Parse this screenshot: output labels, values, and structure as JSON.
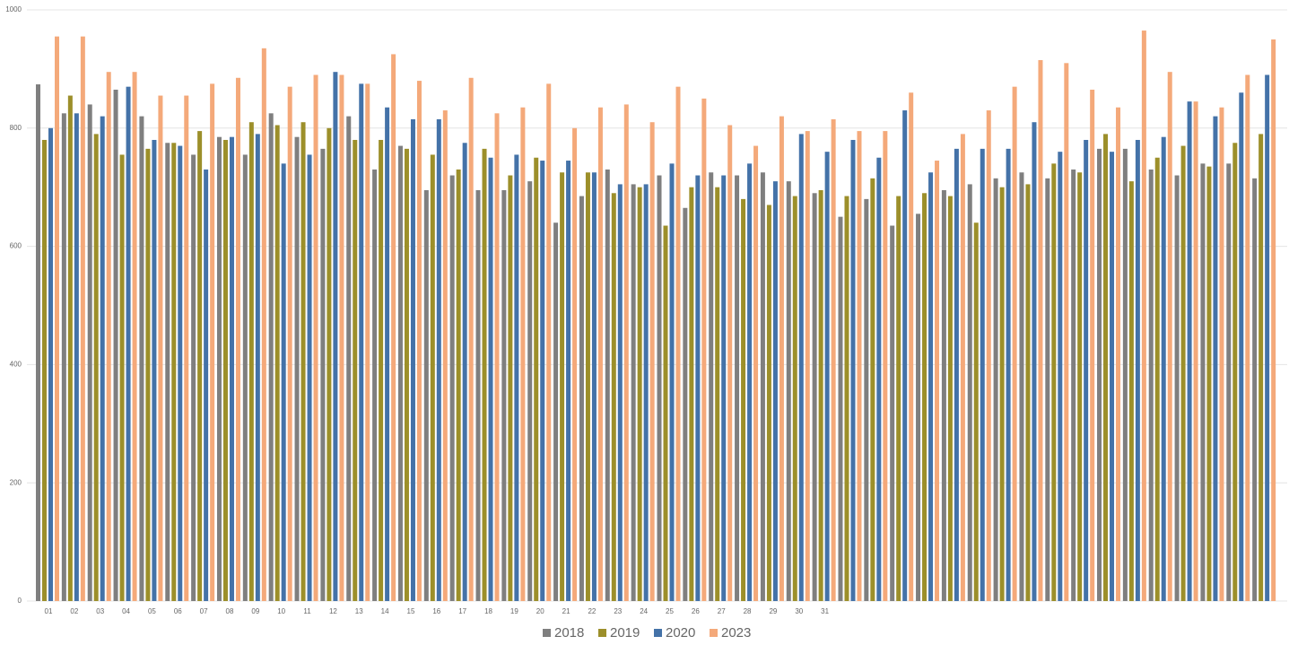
{
  "chart_data": {
    "type": "bar",
    "categories": [
      "01",
      "02",
      "03",
      "04",
      "05",
      "06",
      "07",
      "08",
      "09",
      "10",
      "11",
      "12",
      "13",
      "14",
      "15",
      "16",
      "17",
      "18",
      "19",
      "20",
      "21",
      "22",
      "23",
      "24",
      "25",
      "26",
      "27",
      "28",
      "29",
      "30",
      "31",
      null,
      null,
      null,
      null,
      null,
      null,
      null,
      null,
      null,
      null,
      null,
      null,
      null,
      null,
      null,
      null,
      null
    ],
    "series": [
      {
        "name": "2018",
        "color": "#7f7f7f",
        "values": [
          874,
          825,
          840,
          865,
          820,
          775,
          755,
          785,
          755,
          825,
          785,
          765,
          820,
          730,
          770,
          695,
          720,
          695,
          695,
          710,
          640,
          685,
          730,
          705,
          720,
          665,
          725,
          720,
          725,
          710,
          690,
          650,
          680,
          635,
          655,
          695,
          705,
          715,
          725,
          715,
          730,
          765,
          765,
          730,
          720,
          740,
          740,
          715
        ]
      },
      {
        "name": "2019",
        "color": "#9c8f2a",
        "values": [
          780,
          855,
          790,
          755,
          765,
          775,
          795,
          780,
          810,
          805,
          810,
          800,
          780,
          780,
          765,
          755,
          730,
          765,
          720,
          750,
          725,
          725,
          690,
          700,
          635,
          700,
          700,
          680,
          670,
          685,
          695,
          685,
          715,
          685,
          690,
          685,
          640,
          700,
          705,
          740,
          725,
          790,
          710,
          750,
          770,
          735,
          775,
          790
        ]
      },
      {
        "name": "2020",
        "color": "#4472a8",
        "values": [
          800,
          825,
          820,
          870,
          780,
          770,
          730,
          785,
          790,
          740,
          755,
          895,
          875,
          835,
          815,
          815,
          775,
          750,
          755,
          745,
          745,
          725,
          705,
          705,
          740,
          720,
          720,
          740,
          710,
          790,
          760,
          780,
          750,
          830,
          725,
          765,
          765,
          765,
          810,
          760,
          780,
          760,
          780,
          785,
          845,
          820,
          860,
          890
        ]
      },
      {
        "name": "2023",
        "color": "#f4a97a",
        "values": [
          955,
          955,
          895,
          895,
          855,
          855,
          875,
          885,
          935,
          870,
          890,
          890,
          875,
          925,
          880,
          830,
          885,
          825,
          835,
          875,
          800,
          835,
          840,
          810,
          870,
          850,
          805,
          770,
          820,
          795,
          815,
          795,
          795,
          860,
          745,
          790,
          830,
          870,
          915,
          910,
          865,
          835,
          965,
          895,
          845,
          835,
          890,
          950
        ]
      }
    ],
    "ylim": [
      0,
      1000
    ],
    "yticks": [
      0,
      200,
      400,
      600,
      800,
      1000
    ],
    "grid": true
  }
}
